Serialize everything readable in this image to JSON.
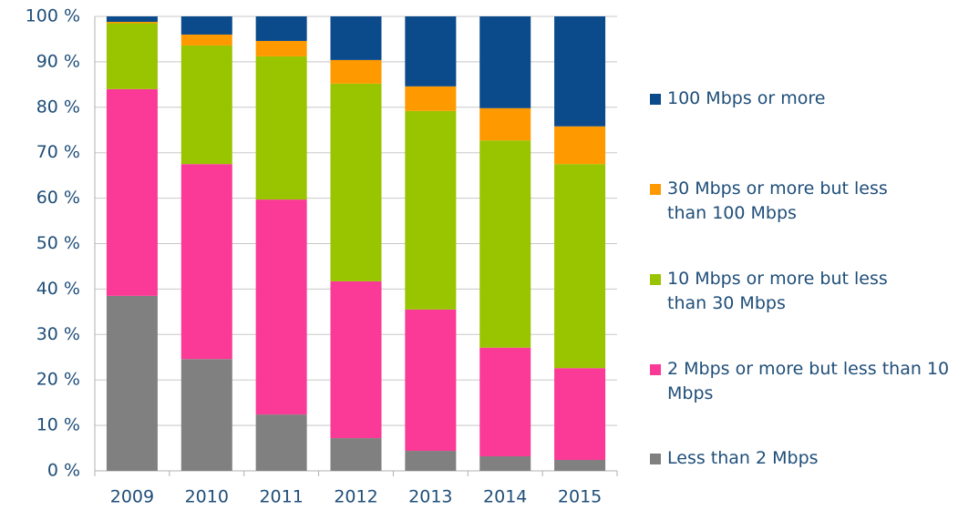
{
  "chart_data": {
    "type": "stacked_bar",
    "categories": [
      "2009",
      "2010",
      "2011",
      "2012",
      "2013",
      "2014",
      "2015"
    ],
    "series": [
      {
        "name": "Less than 2 Mbps",
        "color": "#808080",
        "values": [
          38.5,
          24.6,
          12.4,
          7.2,
          4.4,
          3.2,
          2.4
        ]
      },
      {
        "name": "2 Mbps or more but less than 10 Mbps",
        "color": "#fa3a96",
        "values": [
          45.5,
          42.9,
          47.3,
          34.5,
          31.1,
          23.9,
          20.2
        ]
      },
      {
        "name": "10 Mbps or more but less than 30 Mbps",
        "color": "#99c400",
        "values": [
          14.5,
          26.1,
          31.5,
          43.5,
          43.7,
          45.6,
          44.9
        ]
      },
      {
        "name": "30 Mbps or more but less than 100 Mbps",
        "color": "#ff9900",
        "values": [
          0.3,
          2.4,
          3.4,
          5.2,
          5.4,
          7.1,
          8.3
        ]
      },
      {
        "name": "100 Mbps or more",
        "color": "#0b4a8b",
        "values": [
          1.2,
          4.0,
          5.4,
          9.6,
          15.4,
          20.2,
          24.2
        ]
      }
    ],
    "ylim": [
      0,
      100
    ],
    "yticks": [
      {
        "value": 0,
        "label": "0 %"
      },
      {
        "value": 10,
        "label": "10 %"
      },
      {
        "value": 20,
        "label": "20 %"
      },
      {
        "value": 30,
        "label": "30 %"
      },
      {
        "value": 40,
        "label": "40 %"
      },
      {
        "value": 50,
        "label": "50 %"
      },
      {
        "value": 60,
        "label": "60 %"
      },
      {
        "value": 70,
        "label": "70 %"
      },
      {
        "value": 80,
        "label": "80 %"
      },
      {
        "value": 90,
        "label": "90 %"
      },
      {
        "value": 100,
        "label": "100 %"
      }
    ],
    "grid": true
  }
}
